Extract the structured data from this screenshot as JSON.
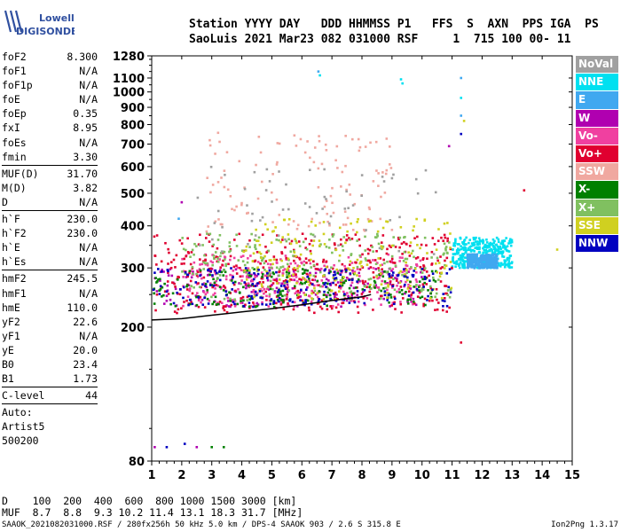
{
  "logo": {
    "line1": "Lowell",
    "line2": "DIGISONDE"
  },
  "header": {
    "labels_line": "Station YYYY DAY   DDD HHMMSS P1   FFS  S  AXN  PPS IGA  PS",
    "values_line": "SaoLuis 2021 Mar23 082 031000 RSF     1  715 100 00- 11"
  },
  "parameters": {
    "group1": [
      {
        "name": "foF2",
        "value": "8.300"
      },
      {
        "name": "foF1",
        "value": "N/A"
      },
      {
        "name": "foF1p",
        "value": "N/A"
      },
      {
        "name": "foE",
        "value": "N/A"
      },
      {
        "name": "foEp",
        "value": "0.35"
      },
      {
        "name": "fxI",
        "value": "8.95"
      },
      {
        "name": "foEs",
        "value": "N/A"
      },
      {
        "name": "fmin",
        "value": "3.30"
      }
    ],
    "group2": [
      {
        "name": "MUF(D)",
        "value": "31.70"
      },
      {
        "name": "M(D)",
        "value": "3.82"
      },
      {
        "name": "D",
        "value": "N/A"
      }
    ],
    "group3": [
      {
        "name": "h`F",
        "value": "230.0"
      },
      {
        "name": "h`F2",
        "value": "230.0"
      },
      {
        "name": "h`E",
        "value": "N/A"
      },
      {
        "name": "h`Es",
        "value": "N/A"
      }
    ],
    "group4": [
      {
        "name": "hmF2",
        "value": "245.5"
      },
      {
        "name": "hmF1",
        "value": "N/A"
      },
      {
        "name": "hmE",
        "value": "110.0"
      },
      {
        "name": "yF2",
        "value": "22.6"
      },
      {
        "name": "yF1",
        "value": "N/A"
      },
      {
        "name": "yE",
        "value": "20.0"
      },
      {
        "name": "B0",
        "value": "23.4"
      },
      {
        "name": "B1",
        "value": "1.73"
      }
    ],
    "group5": [
      {
        "name": "C-level",
        "value": "44"
      }
    ],
    "autoscaling": [
      "Auto:",
      "Artist5",
      "500200"
    ]
  },
  "legend": [
    {
      "label": "NoVal",
      "color": "#a0a0a0"
    },
    {
      "label": "NNE",
      "color": "#00e0f0"
    },
    {
      "label": "E",
      "color": "#40a8f0"
    },
    {
      "label": "W",
      "color": "#b000b0"
    },
    {
      "label": "Vo-",
      "color": "#f040a0"
    },
    {
      "label": "Vo+",
      "color": "#e00030"
    },
    {
      "label": "SSW",
      "color": "#f0a8a0"
    },
    {
      "label": "X-",
      "color": "#008000"
    },
    {
      "label": "X+",
      "color": "#80c060"
    },
    {
      "label": "SSE",
      "color": "#d0d020"
    },
    {
      "label": "NNW",
      "color": "#0000c0"
    }
  ],
  "dmuf_table": {
    "d_row": "D    100  200  400  600  800 1000 1500 3000 [km]",
    "muf_row": "MUF  8.7  8.8  9.3 10.2 11.4 13.1 18.3 31.7 [MHz]"
  },
  "footer": {
    "left": "SAAOK_2021082031000.RSF / 280fx256h 50 kHz 5.0 km / DPS-4 SAAOK 903 / 2.6 S 315.8 E",
    "right": "Ion2Png 1.3.17"
  },
  "chart_data": {
    "type": "scatter",
    "title": "",
    "xlabel": "",
    "ylabel": "",
    "xlim": [
      1,
      15
    ],
    "x_ticks": [
      1,
      2,
      3,
      4,
      5,
      6,
      7,
      8,
      9,
      10,
      11,
      12,
      13,
      14,
      15
    ],
    "y_scale": "log",
    "ylim": [
      80,
      1280
    ],
    "y_ticks": [
      80,
      200,
      300,
      400,
      500,
      600,
      700,
      800,
      900,
      1000,
      1100,
      1280
    ],
    "grid": false,
    "trace_curve": {
      "name": "",
      "color": "#000000",
      "x": [
        1.0,
        2.0,
        3.0,
        4.0,
        5.0,
        6.0,
        7.0,
        8.0,
        8.3
      ],
      "y": [
        210,
        212,
        217,
        222,
        227,
        233,
        240,
        246,
        250
      ]
    },
    "echo_regions": [
      {
        "name": "NNE",
        "color": "#00e0f0",
        "x_range": [
          11.0,
          13.0
        ],
        "y_range": [
          300,
          370
        ],
        "density": 0.6
      },
      {
        "name": "E",
        "color": "#40a8f0",
        "x_range": [
          11.5,
          12.5
        ],
        "y_range": [
          300,
          330
        ],
        "density": 0.5
      },
      {
        "name": "W",
        "color": "#b000b0",
        "x_range": [
          1.0,
          10.0
        ],
        "y_range": [
          230,
          300
        ],
        "density": 0.3
      },
      {
        "name": "Vo-",
        "color": "#f040a0",
        "x_range": [
          2.0,
          10.0
        ],
        "y_range": [
          230,
          330
        ],
        "density": 0.5
      },
      {
        "name": "Vo+",
        "color": "#e00030",
        "x_range": [
          1.0,
          11.0
        ],
        "y_range": [
          220,
          380
        ],
        "density": 0.7
      },
      {
        "name": "SSW",
        "color": "#f0a8a0",
        "x_range": [
          2.8,
          9.0
        ],
        "y_range": [
          380,
          760
        ],
        "density": 0.2
      },
      {
        "name": "X-",
        "color": "#008000",
        "x_range": [
          1.0,
          10.5
        ],
        "y_range": [
          230,
          300
        ],
        "density": 0.3
      },
      {
        "name": "X+",
        "color": "#80c060",
        "x_range": [
          2.0,
          11.0
        ],
        "y_range": [
          240,
          380
        ],
        "density": 0.4
      },
      {
        "name": "SSE",
        "color": "#d0d020",
        "x_range": [
          4.0,
          11.0
        ],
        "y_range": [
          240,
          420
        ],
        "density": 0.3
      },
      {
        "name": "NNW",
        "color": "#0000c0",
        "x_range": [
          1.0,
          11.0
        ],
        "y_range": [
          230,
          300
        ],
        "density": 0.3
      },
      {
        "name": "NoVal",
        "color": "#a0a0a0",
        "x_range": [
          2.5,
          10.5
        ],
        "y_range": [
          330,
          600
        ],
        "density": 0.1
      }
    ],
    "sparse_points": [
      {
        "x": 6.55,
        "y": 1150,
        "color": "#40a8f0"
      },
      {
        "x": 6.6,
        "y": 1120,
        "color": "#00e0f0"
      },
      {
        "x": 9.3,
        "y": 1090,
        "color": "#00e0f0"
      },
      {
        "x": 9.35,
        "y": 1060,
        "color": "#00e0f0"
      },
      {
        "x": 11.3,
        "y": 1100,
        "color": "#40a8f0"
      },
      {
        "x": 11.3,
        "y": 960,
        "color": "#00e0f0"
      },
      {
        "x": 11.3,
        "y": 850,
        "color": "#40a8f0"
      },
      {
        "x": 11.3,
        "y": 750,
        "color": "#0000c0"
      },
      {
        "x": 11.4,
        "y": 820,
        "color": "#d0d020"
      },
      {
        "x": 10.9,
        "y": 690,
        "color": "#b000b0"
      },
      {
        "x": 13.4,
        "y": 510,
        "color": "#e00030"
      },
      {
        "x": 11.3,
        "y": 180,
        "color": "#e00030"
      },
      {
        "x": 14.5,
        "y": 340,
        "color": "#d0d020"
      },
      {
        "x": 1.1,
        "y": 88,
        "color": "#b000b0"
      },
      {
        "x": 1.5,
        "y": 88,
        "color": "#0000c0"
      },
      {
        "x": 2.1,
        "y": 90,
        "color": "#0000c0"
      },
      {
        "x": 2.5,
        "y": 88,
        "color": "#b000b0"
      },
      {
        "x": 3.0,
        "y": 88,
        "color": "#008000"
      },
      {
        "x": 3.4,
        "y": 88,
        "color": "#008000"
      },
      {
        "x": 2.0,
        "y": 470,
        "color": "#b000b0"
      },
      {
        "x": 1.9,
        "y": 420,
        "color": "#40a8f0"
      }
    ]
  }
}
